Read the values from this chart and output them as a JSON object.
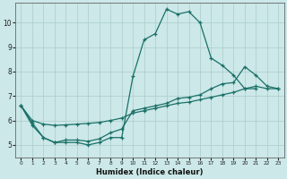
{
  "xlabel": "Humidex (Indice chaleur)",
  "bg_color": "#cce8e8",
  "line_color": "#1a7068",
  "grid_color": "#aacccc",
  "xlim": [
    -0.5,
    23.5
  ],
  "ylim": [
    4.5,
    10.8
  ],
  "yticks": [
    5,
    6,
    7,
    8,
    9,
    10
  ],
  "xticks": [
    0,
    1,
    2,
    3,
    4,
    5,
    6,
    7,
    8,
    9,
    10,
    11,
    12,
    13,
    14,
    15,
    16,
    17,
    18,
    19,
    20,
    21,
    22,
    23
  ],
  "line1_x": [
    0,
    1,
    2,
    3,
    4,
    5,
    6,
    7,
    8,
    9,
    10,
    11,
    12,
    13,
    14,
    15,
    16,
    17,
    18,
    19,
    20,
    21
  ],
  "line1_y": [
    6.6,
    5.8,
    5.3,
    5.1,
    5.1,
    5.1,
    5.0,
    5.1,
    5.3,
    5.3,
    7.8,
    9.3,
    9.55,
    10.55,
    10.35,
    10.45,
    10.0,
    8.55,
    8.25,
    7.85,
    7.3,
    7.3
  ],
  "line2_x": [
    0,
    1,
    2,
    3,
    4,
    5,
    6,
    7,
    8,
    9,
    10,
    11,
    12,
    13,
    14,
    15,
    16,
    17,
    18,
    19,
    20,
    21,
    22,
    23
  ],
  "line2_y": [
    6.6,
    5.9,
    5.3,
    5.1,
    5.2,
    5.2,
    5.15,
    5.25,
    5.5,
    5.65,
    6.4,
    6.5,
    6.6,
    6.7,
    6.9,
    6.95,
    7.05,
    7.3,
    7.5,
    7.55,
    8.2,
    7.85,
    7.4,
    7.3
  ],
  "line3_x": [
    0,
    1,
    2,
    3,
    4,
    5,
    6,
    7,
    8,
    9,
    10,
    11,
    12,
    13,
    14,
    15,
    16,
    17,
    18,
    19,
    20,
    21,
    22,
    23
  ],
  "line3_y": [
    6.6,
    6.0,
    5.85,
    5.8,
    5.82,
    5.85,
    5.88,
    5.92,
    6.0,
    6.1,
    6.3,
    6.4,
    6.5,
    6.6,
    6.7,
    6.75,
    6.85,
    6.95,
    7.05,
    7.15,
    7.3,
    7.4,
    7.3,
    7.3
  ]
}
